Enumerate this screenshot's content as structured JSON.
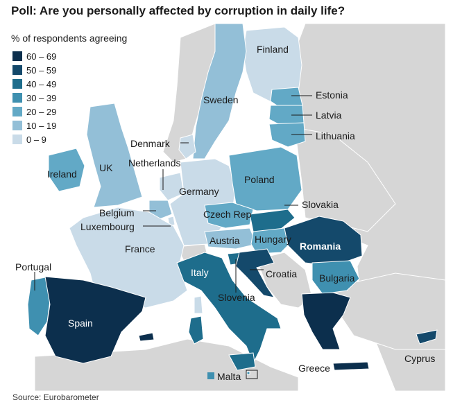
{
  "title": "Poll: Are you personally affected by corruption in daily life?",
  "source": "Source: Eurobarometer",
  "legend": {
    "title": "% of respondents agreeing",
    "bins": [
      {
        "label": "60 – 69",
        "color": "#0c2f4d"
      },
      {
        "label": "50 – 59",
        "color": "#14496b"
      },
      {
        "label": "40 – 49",
        "color": "#1e6d8c"
      },
      {
        "label": "30 – 39",
        "color": "#3f90b0"
      },
      {
        "label": "20 – 29",
        "color": "#62a9c6"
      },
      {
        "label": "10 – 19",
        "color": "#93bfd7"
      },
      {
        "label": "0 – 9",
        "color": "#c9dbe8"
      }
    ]
  },
  "colors": {
    "nonEU": "#d6d6d6",
    "sea": "#ffffff",
    "leader": "#1a1a1a"
  },
  "countries": {
    "finland": {
      "label": "Finland",
      "bin": "0 – 9"
    },
    "sweden": {
      "label": "Sweden",
      "bin": "10 – 19"
    },
    "estonia": {
      "label": "Estonia",
      "bin": "20 – 29"
    },
    "latvia": {
      "label": "Latvia",
      "bin": "20 – 29"
    },
    "lithuania": {
      "label": "Lithuania",
      "bin": "20 – 29"
    },
    "denmark": {
      "label": "Denmark",
      "bin": "0 – 9"
    },
    "ireland": {
      "label": "Ireland",
      "bin": "20 – 29"
    },
    "uk": {
      "label": "UK",
      "bin": "10 – 19"
    },
    "netherlands": {
      "label": "Netherlands",
      "bin": "0 – 9"
    },
    "germany": {
      "label": "Germany",
      "bin": "0 – 9"
    },
    "poland": {
      "label": "Poland",
      "bin": "20 – 29"
    },
    "belgium": {
      "label": "Belgium",
      "bin": "10 – 19"
    },
    "luxembourg": {
      "label": "Luxembourg",
      "bin": "0 – 9"
    },
    "czech": {
      "label": "Czech Rep",
      "bin": "20 – 29"
    },
    "slovakia": {
      "label": "Slovakia",
      "bin": "40 – 49"
    },
    "france": {
      "label": "France",
      "bin": "0 – 9"
    },
    "austria": {
      "label": "Austria",
      "bin": "10 – 19"
    },
    "hungary": {
      "label": "Hungary",
      "bin": "20 – 29"
    },
    "romania": {
      "label": "Romania",
      "bin": "50 – 59"
    },
    "portugal": {
      "label": "Portugal",
      "bin": "30 – 39"
    },
    "italy": {
      "label": "Italy",
      "bin": "40 – 49"
    },
    "croatia": {
      "label": "Croatia",
      "bin": "50 – 59"
    },
    "slovenia": {
      "label": "Slovenia",
      "bin": "40 – 49"
    },
    "bulgaria": {
      "label": "Bulgaria",
      "bin": "30 – 39"
    },
    "spain": {
      "label": "Spain",
      "bin": "60 – 69"
    },
    "greece": {
      "label": "Greece",
      "bin": "60 – 69"
    },
    "malta": {
      "label": "Malta",
      "bin": "30 – 39"
    },
    "cyprus": {
      "label": "Cyprus",
      "bin": "50 – 59"
    }
  }
}
